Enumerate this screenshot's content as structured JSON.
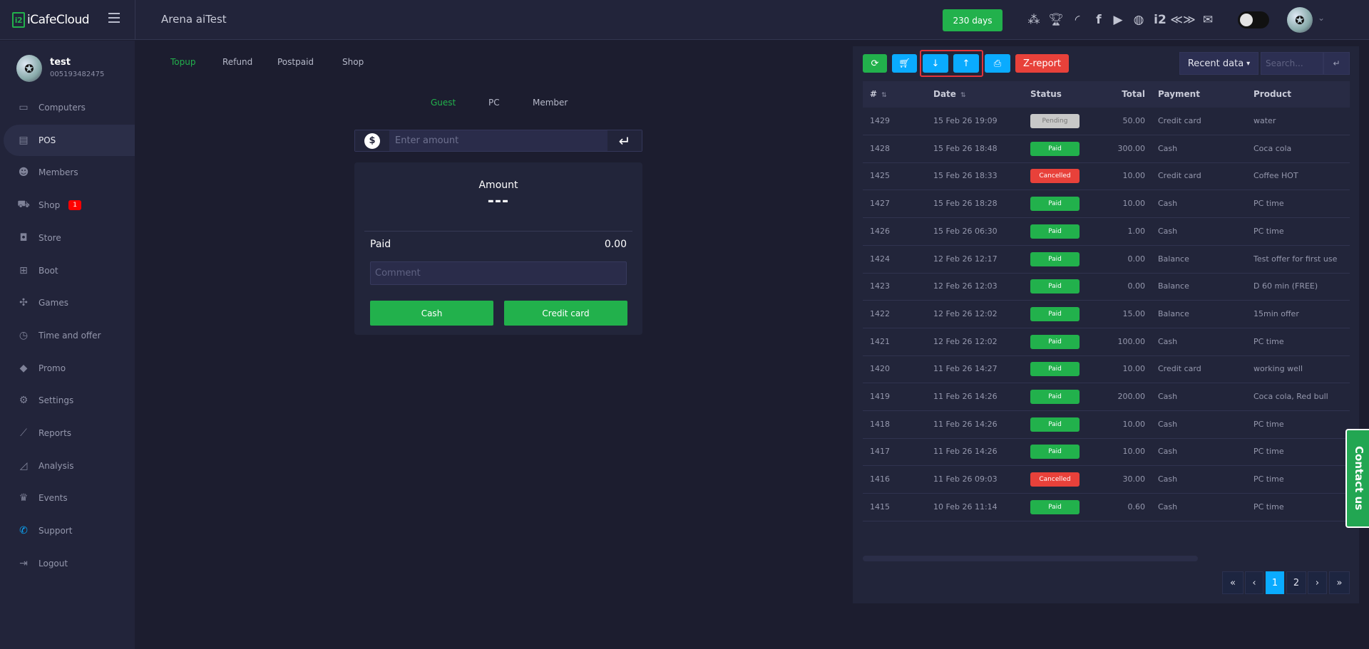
{
  "header": {
    "brand": "iCafeCloud",
    "brand_mark": "i2",
    "site_name": "Arena aiTest",
    "license_days": "230 days",
    "icons": [
      "leaderboard-icon",
      "trophy-icon",
      "rss-icon",
      "facebook-icon",
      "youtube-icon",
      "globe-icon",
      "icafe-icon",
      "partner-icon",
      "mail-icon"
    ],
    "theme_toggle_on": false
  },
  "profile": {
    "name": "test",
    "id": "005193482475"
  },
  "sidebar": {
    "items": [
      {
        "label": "Computers",
        "icon": "monitor-icon",
        "glyph": "▭"
      },
      {
        "label": "POS",
        "icon": "cash-register-icon",
        "glyph": "▤",
        "active": true
      },
      {
        "label": "Members",
        "icon": "users-icon",
        "glyph": "☻"
      },
      {
        "label": "Shop",
        "icon": "cart-icon",
        "glyph": "⛟",
        "badge": "1"
      },
      {
        "label": "Store",
        "icon": "bag-icon",
        "glyph": "◘"
      },
      {
        "label": "Boot",
        "icon": "windows-icon",
        "glyph": "⊞"
      },
      {
        "label": "Games",
        "icon": "gamepad-icon",
        "glyph": "✣"
      },
      {
        "label": "Time and offer",
        "icon": "stopwatch-icon",
        "glyph": "◷"
      },
      {
        "label": "Promo",
        "icon": "tag-icon",
        "glyph": "◆"
      },
      {
        "label": "Settings",
        "icon": "gear-icon",
        "glyph": "⚙"
      },
      {
        "label": "Reports",
        "icon": "line-chart-icon",
        "glyph": "⟋"
      },
      {
        "label": "Analysis",
        "icon": "area-chart-icon",
        "glyph": "◿"
      },
      {
        "label": "Events",
        "icon": "crown-icon",
        "glyph": "♛"
      },
      {
        "label": "Support",
        "icon": "phone-icon",
        "glyph": "✆"
      },
      {
        "label": "Logout",
        "icon": "logout-icon",
        "glyph": "⇥"
      }
    ]
  },
  "pos": {
    "tabs": [
      "Topup",
      "Refund",
      "Postpaid",
      "Shop"
    ],
    "active_tab": "Topup",
    "subtabs": [
      "Guest",
      "PC",
      "Member"
    ],
    "active_subtab": "Guest",
    "amount_placeholder": "Enter amount",
    "amount_label": "Amount",
    "amount_value": "---",
    "paid_label": "Paid",
    "paid_value": "0.00",
    "comment_placeholder": "Comment",
    "cash_button": "Cash",
    "credit_button": "Credit card"
  },
  "orders": {
    "toolbar": {
      "zreport": "Z-report",
      "range": "Recent data",
      "search_placeholder": "Search..."
    },
    "columns": [
      "#",
      "Date",
      "Status",
      "Total",
      "Payment",
      "Product"
    ],
    "status_colors": {
      "Paid": "#22b14c",
      "Cancelled": "#e8413a",
      "Pending": "#c8c8c8"
    },
    "rows": [
      {
        "id": "1429",
        "date": "15 Feb 26 19:09",
        "status": "Pending",
        "total": "50.00",
        "payment": "Credit card",
        "product": "water"
      },
      {
        "id": "1428",
        "date": "15 Feb 26 18:48",
        "status": "Paid",
        "total": "300.00",
        "payment": "Cash",
        "product": "Coca cola"
      },
      {
        "id": "1425",
        "date": "15 Feb 26 18:33",
        "status": "Cancelled",
        "total": "10.00",
        "payment": "Credit card",
        "product": "Coffee HOT"
      },
      {
        "id": "1427",
        "date": "15 Feb 26 18:28",
        "status": "Paid",
        "total": "10.00",
        "payment": "Cash",
        "product": "PC time"
      },
      {
        "id": "1426",
        "date": "15 Feb 26 06:30",
        "status": "Paid",
        "total": "1.00",
        "payment": "Cash",
        "product": "PC time"
      },
      {
        "id": "1424",
        "date": "12 Feb 26 12:17",
        "status": "Paid",
        "total": "0.00",
        "payment": "Balance",
        "product": "Test offer for first use"
      },
      {
        "id": "1423",
        "date": "12 Feb 26 12:03",
        "status": "Paid",
        "total": "0.00",
        "payment": "Balance",
        "product": "D 60 min (FREE)"
      },
      {
        "id": "1422",
        "date": "12 Feb 26 12:02",
        "status": "Paid",
        "total": "15.00",
        "payment": "Balance",
        "product": "15min offer"
      },
      {
        "id": "1421",
        "date": "12 Feb 26 12:02",
        "status": "Paid",
        "total": "100.00",
        "payment": "Cash",
        "product": "PC time"
      },
      {
        "id": "1420",
        "date": "11 Feb 26 14:27",
        "status": "Paid",
        "total": "10.00",
        "payment": "Credit card",
        "product": "working well"
      },
      {
        "id": "1419",
        "date": "11 Feb 26 14:26",
        "status": "Paid",
        "total": "200.00",
        "payment": "Cash",
        "product": "Coca cola, Red bull"
      },
      {
        "id": "1418",
        "date": "11 Feb 26 14:26",
        "status": "Paid",
        "total": "10.00",
        "payment": "Cash",
        "product": "PC time"
      },
      {
        "id": "1417",
        "date": "11 Feb 26 14:26",
        "status": "Paid",
        "total": "10.00",
        "payment": "Cash",
        "product": "PC time"
      },
      {
        "id": "1416",
        "date": "11 Feb 26 09:03",
        "status": "Cancelled",
        "total": "30.00",
        "payment": "Cash",
        "product": "PC time"
      },
      {
        "id": "1415",
        "date": "10 Feb 26 11:14",
        "status": "Paid",
        "total": "0.60",
        "payment": "Cash",
        "product": "PC time"
      }
    ],
    "pagination": {
      "first": "«",
      "prev": "‹",
      "pages": [
        "1",
        "2"
      ],
      "current": "1",
      "next": "›",
      "last": "»"
    }
  },
  "contact": "Contact us"
}
